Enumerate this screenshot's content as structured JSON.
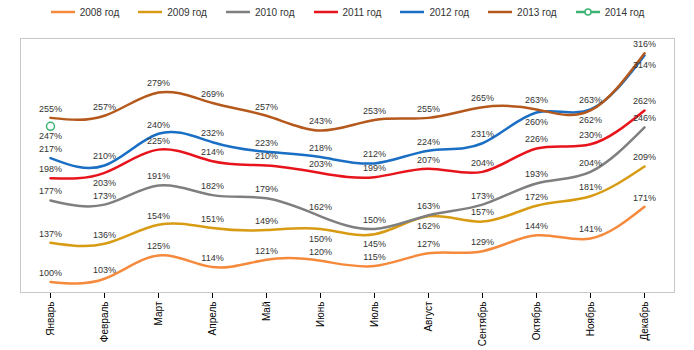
{
  "chart_data": {
    "type": "line",
    "categories": [
      "Январь",
      "Февраль",
      "Март",
      "Апрель",
      "Май",
      "Июнь",
      "Июль",
      "Август",
      "Сентябрь",
      "Октябрь",
      "Ноябрь",
      "Декабрь"
    ],
    "series": [
      {
        "name": "2008 год",
        "color": "#f58a3c",
        "marker": "none",
        "line_style": "smooth",
        "values": [
          100,
          103,
          125,
          114,
          121,
          120,
          115,
          127,
          129,
          144,
          141,
          171
        ],
        "value_labels": [
          "100%",
          "103%",
          "125%",
          "114%",
          "121%",
          "120%",
          "115%",
          "127%",
          "129%",
          "144%",
          "141%",
          "171%"
        ]
      },
      {
        "name": "2009 год",
        "color": "#d89b14",
        "marker": "none",
        "line_style": "smooth",
        "values": [
          137,
          136,
          154,
          151,
          149,
          150,
          145,
          162,
          157,
          172,
          181,
          209
        ],
        "value_labels": [
          "137%",
          "136%",
          "154%",
          "151%",
          "149%",
          "150%",
          "145%",
          "162%",
          "157%",
          "172%",
          "181%",
          "209%"
        ]
      },
      {
        "name": "2010 год",
        "color": "#7f7f7f",
        "marker": "none",
        "line_style": "smooth",
        "values": [
          177,
          173,
          191,
          182,
          179,
          162,
          150,
          163,
          173,
          193,
          204,
          246
        ],
        "value_labels": [
          "177%",
          "173%",
          "191%",
          "182%",
          "179%",
          "162%",
          "150%",
          "163%",
          "173%",
          "193%",
          "204%",
          "246%"
        ]
      },
      {
        "name": "2011 год",
        "color": "#e8141b",
        "marker": "none",
        "line_style": "smooth",
        "values": [
          198,
          203,
          225,
          214,
          210,
          203,
          199,
          207,
          204,
          226,
          230,
          262
        ],
        "value_labels": [
          "198%",
          "203%",
          "225%",
          "214%",
          "210%",
          "203%",
          "199%",
          "207%",
          "204%",
          "226%",
          "230%",
          "262%"
        ]
      },
      {
        "name": "2012 год",
        "color": "#1a6fc4",
        "marker": "none",
        "line_style": "smooth",
        "values": [
          217,
          210,
          240,
          232,
          223,
          218,
          212,
          224,
          231,
          260,
          263,
          314
        ],
        "value_labels": [
          "217%",
          "210%",
          "240%",
          "232%",
          "223%",
          "218%",
          "212%",
          "224%",
          "231%",
          "260%",
          "263%",
          "314%"
        ]
      },
      {
        "name": "2013 год",
        "color": "#b5581c",
        "marker": "none",
        "line_style": "smooth",
        "values": [
          255,
          257,
          279,
          269,
          257,
          243,
          253,
          255,
          265,
          263,
          262,
          316
        ],
        "value_labels": [
          "255%",
          "257%",
          "279%",
          "269%",
          "257%",
          "243%",
          "253%",
          "255%",
          "265%",
          "263%",
          "262%",
          "316%"
        ]
      },
      {
        "name": "2014 год",
        "color": "#3cb371",
        "marker": "circle",
        "line_style": "smooth",
        "values": [
          247,
          null,
          null,
          null,
          null,
          null,
          null,
          null,
          null,
          null,
          null,
          null
        ],
        "value_labels": [
          "247%",
          null,
          null,
          null,
          null,
          null,
          null,
          null,
          null,
          null,
          null,
          null
        ]
      }
    ],
    "ylim": [
      90,
      330
    ],
    "yticks": [],
    "grid": false,
    "legend": "top",
    "data_labels": true,
    "tick_labels": "x"
  }
}
